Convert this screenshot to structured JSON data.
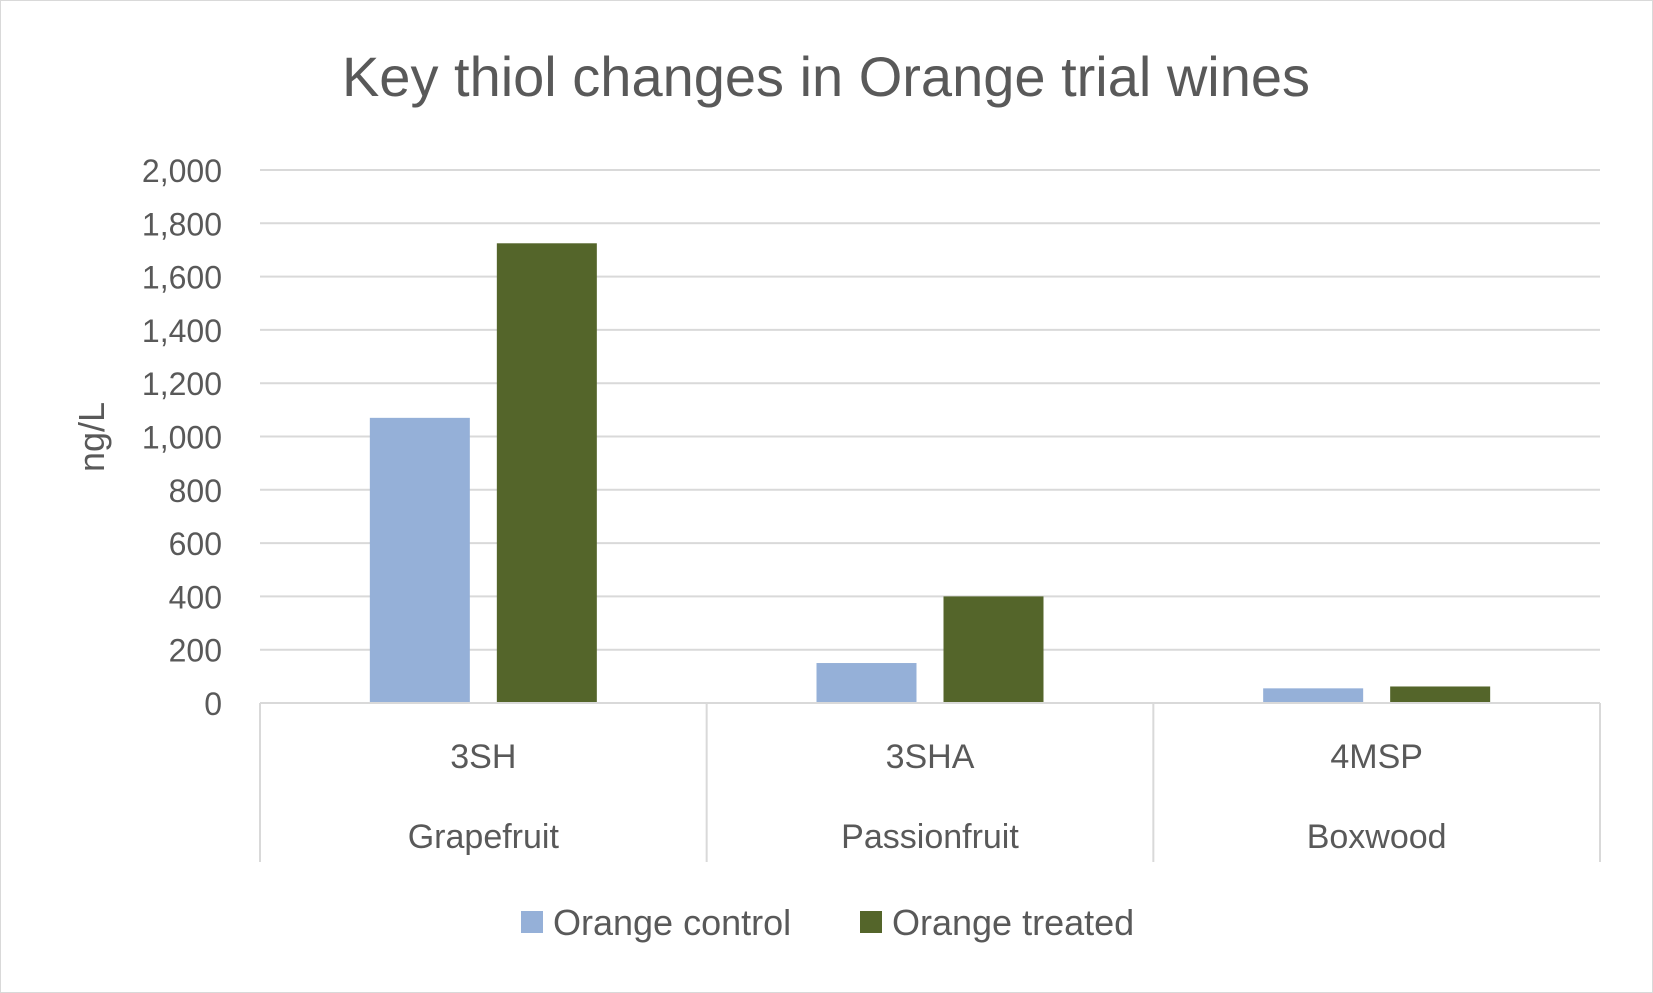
{
  "chart_data": {
    "type": "bar",
    "title": "Key thiol changes in Orange trial wines",
    "ylabel": "ng/L",
    "xlabel": "",
    "ylim": [
      0,
      2000
    ],
    "yticks": [
      0,
      200,
      400,
      600,
      800,
      1000,
      1200,
      1400,
      1600,
      1800,
      2000
    ],
    "ytick_labels": [
      "0",
      "200",
      "400",
      "600",
      "800",
      "1,000",
      "1,200",
      "1,400",
      "1,600",
      "1,800",
      "2,000"
    ],
    "categories": [
      "3SH",
      "3SHA",
      "4MSP"
    ],
    "category_groups": [
      "Grapefruit",
      "Passionfruit",
      "Boxwood"
    ],
    "series": [
      {
        "name": "Orange control",
        "color": "#95b0d8",
        "values": [
          1070,
          150,
          55
        ]
      },
      {
        "name": "Orange treated",
        "color": "#54652a",
        "values": [
          1725,
          400,
          62
        ]
      }
    ],
    "grid": true,
    "legend_position": "bottom"
  }
}
